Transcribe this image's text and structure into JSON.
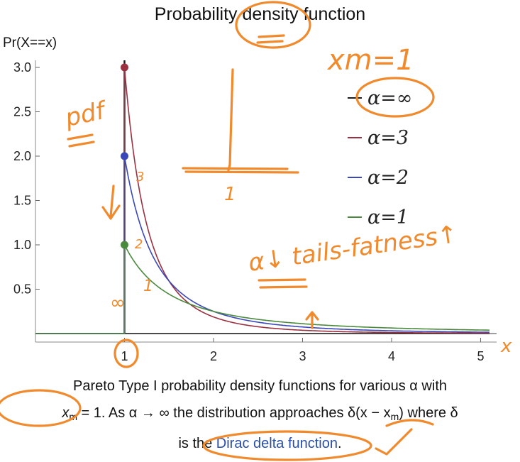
{
  "chart_data": {
    "type": "line",
    "title": "Probability density function",
    "ylabel": "Pr(X==x)",
    "xlabel": "",
    "xlim": [
      0,
      5.1
    ],
    "ylim": [
      0,
      3.1
    ],
    "x_ticks": [
      1,
      2,
      3,
      4,
      5
    ],
    "y_ticks": [
      0.5,
      1.0,
      1.5,
      2.0,
      2.5,
      3.0
    ],
    "x_tick_labels": [
      "1",
      "2",
      "3",
      "4",
      "5"
    ],
    "y_tick_labels": [
      "0.5",
      "1.0",
      "1.5",
      "2.0",
      "2.5",
      "3.0"
    ],
    "xm": 1,
    "legend_position": "right",
    "series": [
      {
        "name": "α=∞",
        "alpha": null,
        "color": "#1a1a1a"
      },
      {
        "name": "α=3",
        "alpha": 3,
        "color": "#9b3040",
        "peak": 3.0
      },
      {
        "name": "α=2",
        "alpha": 2,
        "color": "#3a47b8",
        "peak": 2.0
      },
      {
        "name": "α=1",
        "alpha": 1,
        "color": "#4a8a3c",
        "peak": 1.0
      }
    ]
  },
  "caption": {
    "line1": "Pareto Type I probability density functions for various α with",
    "line2_a": "x",
    "line2_b": "m",
    "line2_c": " = 1. As α → ∞ the distribution approaches δ(x − x",
    "line2_d": "m",
    "line2_e": ") where δ",
    "line3_a": "is the ",
    "line3_link": "Dirac delta function",
    "line3_b": "."
  },
  "annotations": {
    "xm_note": "xm=1",
    "pdf_note": "pdf",
    "tails_note": "α↓ tails-fatness↑",
    "spike_label": "1",
    "x_axis_mark": "x",
    "curve_mark_3": "3",
    "curve_mark_2": "2",
    "curve_mark_1": "1",
    "inf_mark": "∞"
  },
  "colors": {
    "annotation": "#f08a2c",
    "link": "#2a4fa8"
  }
}
